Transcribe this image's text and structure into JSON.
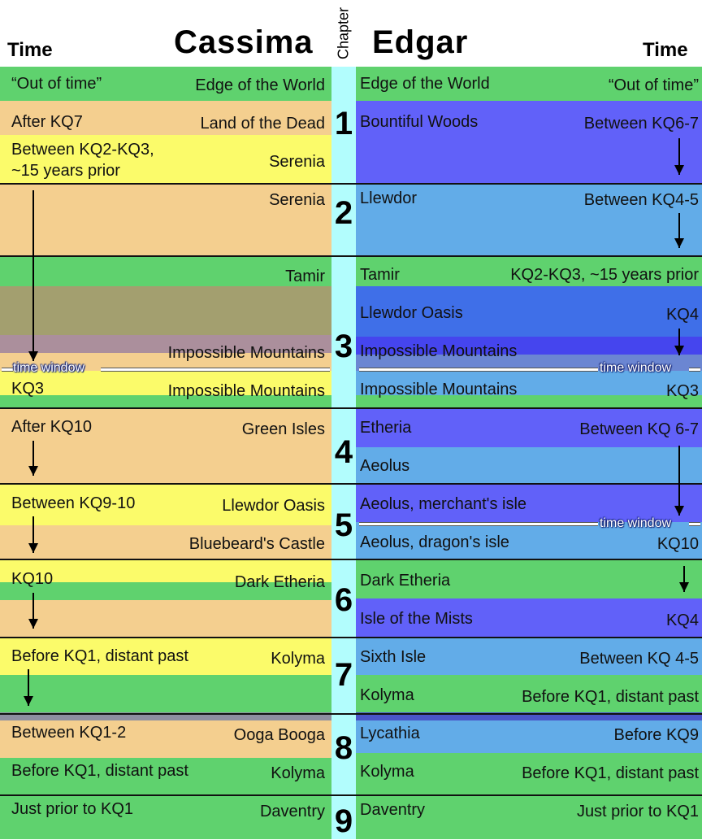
{
  "header": {
    "time_left": "Time",
    "cassima": "Cassima",
    "chapter": "Chapter",
    "edgar": "Edgar",
    "time_right": "Time"
  },
  "chapters": [
    "1",
    "2",
    "3",
    "4",
    "5",
    "6",
    "7",
    "8",
    "9"
  ],
  "colors": {
    "green": "#5fd26e",
    "peach": "#f4cf8f",
    "yellow": "#fbfb6a",
    "violet": "#6161f9",
    "sky": "#62ace8",
    "royal": "#3f6fe8",
    "olive": "#a39f6f",
    "mauve": "#ab8f9c",
    "cyan": "#b2fdfd"
  },
  "time_window": "time window",
  "cassima": [
    {
      "time": "“Out of time”",
      "place": "Edge of the World"
    },
    {
      "time": "After KQ7",
      "place": "Land of the Dead"
    },
    {
      "time": "Between KQ2-KQ3,",
      "time2": "~15 years prior",
      "place": "Serenia"
    },
    {
      "place": "Serenia"
    },
    {
      "place": "Tamir"
    },
    {
      "place": "Impossible Mountains"
    },
    {
      "time": "KQ3",
      "place": "Impossible Mountains"
    },
    {
      "time": "After KQ10",
      "place": "Green Isles"
    },
    {
      "time": "Between KQ9-10",
      "place": "Llewdor Oasis"
    },
    {
      "place": "Bluebeard's Castle"
    },
    {
      "time": "KQ10",
      "place": "Dark Etheria"
    },
    {
      "time": "Before KQ1, distant past",
      "place": "Kolyma"
    },
    {
      "time": "Between KQ1-2",
      "place": "Ooga Booga"
    },
    {
      "time": "Before KQ1, distant past",
      "place": "Kolyma"
    },
    {
      "time": "Just prior to KQ1",
      "place": "Daventry"
    }
  ],
  "edgar": [
    {
      "place": "Edge of the World",
      "time": "“Out of time”"
    },
    {
      "place": "Bountiful Woods",
      "time": "Between KQ6-7"
    },
    {
      "place": "Llewdor",
      "time": "Between KQ4-5"
    },
    {
      "place": "Tamir",
      "time": "KQ2-KQ3, ~15 years prior"
    },
    {
      "place": "Llewdor Oasis",
      "time": "KQ4"
    },
    {
      "place": "Impossible Mountains"
    },
    {
      "place": "Impossible Mountains",
      "time": "KQ3"
    },
    {
      "place": "Etheria",
      "time": "Between KQ 6-7"
    },
    {
      "place": "Aeolus"
    },
    {
      "place": "Aeolus, merchant's isle"
    },
    {
      "place": "Aeolus, dragon's isle",
      "time": "KQ10"
    },
    {
      "place": "Dark Etheria"
    },
    {
      "place": "Isle of the Mists",
      "time": "KQ4"
    },
    {
      "place": "Sixth Isle",
      "time": "Between KQ 4-5"
    },
    {
      "place": "Kolyma",
      "time": "Before KQ1, distant past"
    },
    {
      "place": "Lycathia",
      "time": "Before KQ9"
    },
    {
      "place": "Kolyma",
      "time": "Before KQ1, distant past"
    },
    {
      "place": "Daventry",
      "time": "Just prior to KQ1"
    }
  ]
}
